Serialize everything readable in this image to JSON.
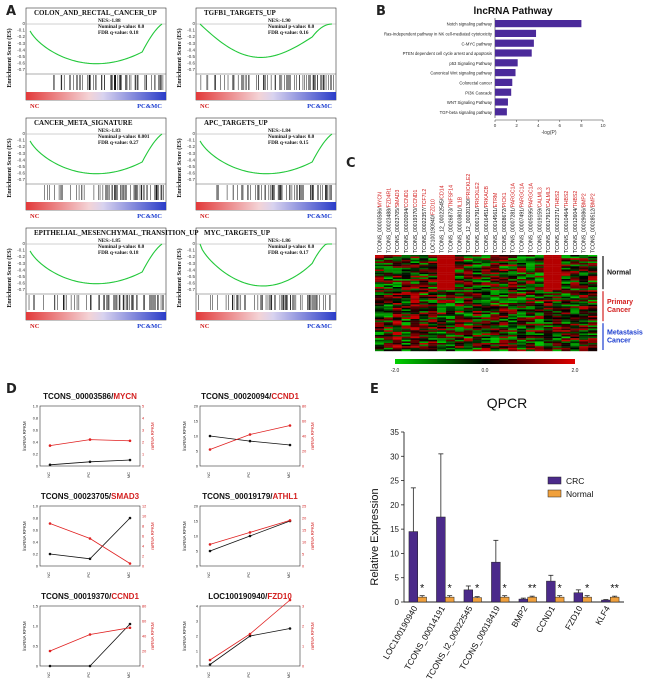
{
  "panel_labels": {
    "a": "A",
    "b": "B",
    "c": "C",
    "d": "D",
    "e": "E"
  },
  "gsea": {
    "ylabel": "Enrichment Score (ES)",
    "nc_label": "NC",
    "pc_label": "PC&MC",
    "plots": [
      {
        "title": "COLON_AND_RECTAL_CANCER_UP",
        "nes": "NES:-1.88",
        "pval": "Nominal p-value: 0.0",
        "fdr": "FDR q-value: 0.18"
      },
      {
        "title": "TGFB1_TARGETS_UP",
        "nes": "NES:-1.90",
        "pval": "Nominal p-value: 0.0",
        "fdr": "FDR q-value: 0.16"
      },
      {
        "title": "CANCER_META_SIGNATURE",
        "nes": "NES:-1.83",
        "pval": "Nominal p-value: 0.001",
        "fdr": "FDR q-value: 0.27"
      },
      {
        "title": "APC_TARGETS_UP",
        "nes": "NES:-1.84",
        "pval": "Nominal p-value: 0.0",
        "fdr": "FDR q-value: 0.15"
      },
      {
        "title": "EPITHELIAL_MESENCHYMAL_TRANSITION_UP",
        "nes": "NES:-1.85",
        "pval": "Nominal p-value: 0.0",
        "fdr": "FDR q-value: 0.18"
      },
      {
        "title": "MYC_TARGETS_UP",
        "nes": "NES:-1.86",
        "pval": "Nominal p-value: 0.0",
        "fdr": "FDR q-value: 0.17"
      }
    ]
  },
  "pathway": {
    "title": "lncRNA Pathway",
    "xlabel": "-log(P)",
    "color": "#4b2a9a",
    "items": [
      {
        "label": "Notch signaling pathway",
        "value": 8.0
      },
      {
        "label": "Ras-Independent pathway in NK cell-mediated cytotoxicity",
        "value": 3.8
      },
      {
        "label": "C-MYC pathway",
        "value": 3.6
      },
      {
        "label": "PTEN dependent cell cycle arrest and apoptosis",
        "value": 3.4
      },
      {
        "label": "p53 Signaling Pathway",
        "value": 2.1
      },
      {
        "label": "Canonical Wnt signaling pathway",
        "value": 1.9
      },
      {
        "label": "Colorectal cancer",
        "value": 1.6
      },
      {
        "label": "PI3K Cascade",
        "value": 1.5
      },
      {
        "label": "WNT Signaling Pathway",
        "value": 1.2
      },
      {
        "label": "TGF-beta signaling pathway",
        "value": 1.1
      }
    ],
    "ticks": [
      "0",
      "2",
      "4",
      "6",
      "8",
      "10"
    ]
  },
  "heatmap": {
    "pairs": [
      {
        "lnc": "TCONS_00003586/",
        "gene": "MYCN"
      },
      {
        "lnc": "TCONS_00023488/",
        "gene": "FZD4R1"
      },
      {
        "lnc": "TCONS_00023705/",
        "gene": "SMAD3"
      },
      {
        "lnc": "TCONS_00020094/",
        "gene": "CCND1"
      },
      {
        "lnc": "TCONS_00019370/",
        "gene": "CCND1"
      },
      {
        "lnc": "TCONS_00022357/",
        "gene": "TCF7L2"
      },
      {
        "lnc": "LOC100190940/",
        "gene": "FZD10"
      },
      {
        "lnc": "TCONS_12_00022545/",
        "gene": "CD14"
      },
      {
        "lnc": "TCONS_00026873/",
        "gene": "TNFSF14"
      },
      {
        "lnc": "TCONS_00003801/",
        "gene": "IL1B"
      },
      {
        "lnc": "TCONS_12_00020130/",
        "gene": "PRICKLE2"
      },
      {
        "lnc": "TCONS_00001791/",
        "gene": "PRICKLE2"
      },
      {
        "lnc": "TCONS_00016451/",
        "gene": "PRKACB"
      },
      {
        "lnc": "TCONS_00014561/",
        "gene": "ETRM"
      },
      {
        "lnc": "TCONS_00028672/",
        "gene": "PICK1"
      },
      {
        "lnc": "TCONS_00007281/",
        "gene": "PARGC1A"
      },
      {
        "lnc": "TCONS_00007491/",
        "gene": "PARGC1A"
      },
      {
        "lnc": "TCONS_00005595/",
        "gene": "PARGC1A"
      },
      {
        "lnc": "TCONS_00019159/",
        "gene": "CALML3"
      },
      {
        "lnc": "TCONS_00017912/",
        "gene": "CALML3"
      },
      {
        "lnc": "TCONS_00022371/",
        "gene": "THBS2"
      },
      {
        "lnc": "TCONS_00010464/",
        "gene": "THBS2"
      },
      {
        "lnc": "TCONS_00012604/",
        "gene": "THBS2"
      },
      {
        "lnc": "TCONS_00029086/",
        "gene": "BMP2"
      },
      {
        "lnc": "TCONS_00028512/",
        "gene": "BMP2"
      }
    ],
    "groups": [
      {
        "label": "Normal",
        "color": "#111111"
      },
      {
        "label": "Primary Cancer",
        "color": "#d32020"
      },
      {
        "label": "Metastasis Cancer",
        "color": "#1a3ccf"
      }
    ],
    "scale_ticks": [
      "-2.0",
      "0.0",
      "2.0"
    ]
  },
  "lines": {
    "left_axis": "lncRNA RPKM",
    "right_axis": "mRNA RPKM",
    "x": [
      "NC",
      "PC",
      "MC"
    ],
    "plots": [
      {
        "lnc": "TCONS_00003586/",
        "gene": "MYCN",
        "lnc_vals": [
          0.02,
          0.07,
          0.1
        ],
        "mrna_vals": [
          1.7,
          2.2,
          2.1
        ],
        "lnc_ticks": [
          "0",
          "0.2",
          "0.4",
          "0.6",
          "0.8",
          "1.0"
        ],
        "mrna_ticks": [
          "0",
          "1",
          "2",
          "3",
          "4",
          "5"
        ]
      },
      {
        "lnc": "TCONS_00020094/",
        "gene": "CCND1",
        "lnc_vals": [
          10,
          8.3,
          7
        ],
        "mrna_vals": [
          22,
          42,
          54
        ],
        "lnc_ticks": [
          "0",
          "5",
          "10",
          "15",
          "20"
        ],
        "mrna_ticks": [
          "0",
          "20",
          "40",
          "60",
          "80"
        ]
      },
      {
        "lnc": "TCONS_00023705/",
        "gene": "SMAD3",
        "lnc_vals": [
          0.2,
          0.12,
          0.8
        ],
        "mrna_vals": [
          8.5,
          5.5,
          0.5
        ],
        "lnc_ticks": [
          "0",
          "0.2",
          "0.4",
          "0.6",
          "0.8",
          "1.0"
        ],
        "mrna_ticks": [
          "0",
          "2",
          "4",
          "6",
          "8",
          "10",
          "12"
        ]
      },
      {
        "lnc": "TCONS_00019179/",
        "gene": "ATHL1",
        "lnc_vals": [
          5,
          10,
          15
        ],
        "mrna_vals": [
          9,
          14,
          19
        ],
        "lnc_ticks": [
          "0",
          "5",
          "10",
          "15",
          "20"
        ],
        "mrna_ticks": [
          "0",
          "5",
          "10",
          "15",
          "20",
          "25"
        ]
      },
      {
        "lnc": "TCONS_00019370/",
        "gene": "CCND1",
        "lnc_vals": [
          0.0,
          0.0,
          1.05
        ],
        "mrna_vals": [
          20,
          42,
          51
        ],
        "lnc_ticks": [
          "0",
          "0.5",
          "1.0",
          "1.5"
        ],
        "mrna_ticks": [
          "0",
          "20",
          "40",
          "60",
          "80"
        ]
      },
      {
        "lnc": "LOC100190940/",
        "gene": "FZD10",
        "lnc_vals": [
          0.1,
          2.0,
          2.5
        ],
        "mrna_vals": [
          0.3,
          1.6,
          3.3
        ],
        "lnc_ticks": [
          "0",
          "1",
          "2",
          "3",
          "4"
        ],
        "mrna_ticks": [
          "0",
          "1",
          "2",
          "3"
        ]
      }
    ]
  },
  "chart_data": {
    "type": "bar",
    "title": "QPCR",
    "ylabel": "Relative Expression",
    "xlabel": "",
    "ylim": [
      0,
      35
    ],
    "yticks": [
      "0",
      "5",
      "10",
      "15",
      "20",
      "25",
      "30",
      "35"
    ],
    "categories": [
      "LOC100190940",
      "TCONS_00014191",
      "TCONS_l2_00022545",
      "TCONS_00018419",
      "BMP2",
      "CCND1",
      "FZD10",
      "KLF4"
    ],
    "series": [
      {
        "name": "CRC",
        "color": "#4b2a8a",
        "values": [
          14.5,
          17.5,
          2.5,
          8.2,
          0.6,
          4.3,
          1.9,
          0.4
        ],
        "errors": [
          9,
          13,
          0.8,
          4.5,
          0.2,
          1.2,
          0.6,
          0.1
        ]
      },
      {
        "name": "Normal",
        "color": "#f0a03c",
        "values": [
          1.0,
          1.0,
          0.9,
          1.0,
          1.0,
          1.0,
          1.0,
          1.0
        ],
        "errors": [
          0.3,
          0.3,
          0.2,
          0.3,
          0.2,
          0.3,
          0.3,
          0.2
        ]
      }
    ],
    "significance": [
      "*",
      "*",
      "*",
      "*",
      "**",
      "*",
      "*",
      "**"
    ],
    "legend_position": "top-right"
  }
}
